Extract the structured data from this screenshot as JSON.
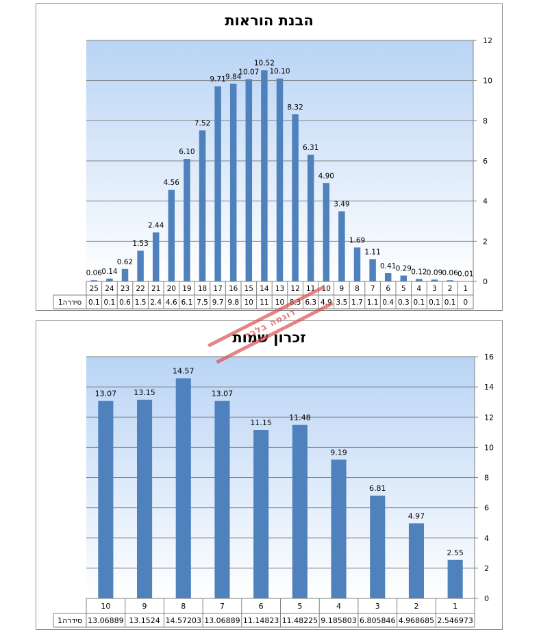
{
  "chart_data": [
    {
      "type": "bar",
      "title": "הבנת הוראות",
      "categories": [
        "25",
        "24",
        "23",
        "22",
        "21",
        "20",
        "19",
        "18",
        "17",
        "16",
        "15",
        "14",
        "13",
        "12",
        "11",
        "10",
        "9",
        "8",
        "7",
        "6",
        "5",
        "4",
        "3",
        "2",
        "1"
      ],
      "series": [
        {
          "name": "סידרה1",
          "values": [
            0.06,
            0.14,
            0.62,
            1.53,
            2.44,
            4.56,
            6.1,
            7.52,
            9.71,
            9.84,
            10.07,
            10.52,
            10.1,
            8.32,
            6.31,
            4.9,
            3.49,
            1.69,
            1.11,
            0.41,
            0.29,
            0.12,
            0.09,
            0.06,
            0.01
          ],
          "data_labels": [
            "0.06",
            "0.14",
            "0.62",
            "1.53",
            "2.44",
            "4.56",
            "6.10",
            "7.52",
            "9.71",
            "9.84",
            "10.07",
            "10.52",
            "10.10",
            "8.32",
            "6.31",
            "4.90",
            "3.49",
            "1.69",
            "1.11",
            "0.41",
            "0.29",
            "0.12",
            "0.09",
            "0.06",
            "0.01"
          ],
          "table_values": [
            "0.1",
            "0.1",
            "0.6",
            "1.5",
            "2.4",
            "4.6",
            "6.1",
            "7.5",
            "9.7",
            "9.8",
            "10",
            "11",
            "10",
            "8.3",
            "6.3",
            "4.9",
            "3.5",
            "1.7",
            "1.1",
            "0.4",
            "0.3",
            "0.1",
            "0.1",
            "0.1",
            "0"
          ]
        }
      ],
      "ylim": [
        0,
        12
      ],
      "yticks": [
        "0",
        "2",
        "4",
        "6",
        "8",
        "10",
        "12"
      ],
      "axis_side": "right",
      "grid": true,
      "data_table": true,
      "colors": {
        "bar": "#4f81bd",
        "plot_top": "#b9d4f5",
        "plot_bottom": "#ffffff"
      }
    },
    {
      "type": "bar",
      "title": "זכרון שמות",
      "categories": [
        "10",
        "9",
        "8",
        "7",
        "6",
        "5",
        "4",
        "3",
        "2",
        "1"
      ],
      "series": [
        {
          "name": "סידרה1",
          "values": [
            13.06889,
            13.1524,
            14.57203,
            13.06889,
            11.14823,
            11.48225,
            9.185803,
            6.805846,
            4.968685,
            2.546973
          ],
          "data_labels": [
            "13.07",
            "13.15",
            "14.57",
            "13.07",
            "11.15",
            "11.48",
            "9.19",
            "6.81",
            "4.97",
            "2.55"
          ],
          "table_values": [
            "13.06889",
            "13.1524",
            "14.57203",
            "13.06889",
            "11.14823",
            "11.48225",
            "9.185803",
            "6.805846",
            "4.968685",
            "2.546973"
          ]
        }
      ],
      "ylim": [
        0,
        16
      ],
      "yticks": [
        "0",
        "2",
        "4",
        "6",
        "8",
        "10",
        "12",
        "14",
        "16"
      ],
      "axis_side": "right",
      "grid": true,
      "data_table": true,
      "colors": {
        "bar": "#4f81bd",
        "plot_top": "#b9d4f5",
        "plot_bottom": "#ffffff"
      }
    }
  ],
  "stamp": {
    "text": "דוגמה בלבד"
  }
}
